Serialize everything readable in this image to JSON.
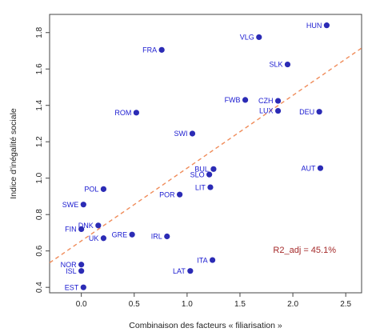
{
  "chart_data": {
    "type": "scatter",
    "xlabel": "Combinaison des facteurs « filiarisation »",
    "ylabel": "Indice d'inégalité sociale",
    "xlim": [
      -0.3,
      2.65
    ],
    "ylim": [
      0.37,
      1.9
    ],
    "xticks": [
      0.0,
      0.5,
      1.0,
      1.5,
      2.0,
      2.5
    ],
    "yticks": [
      0.4,
      0.6,
      0.8,
      1.0,
      1.2,
      1.4,
      1.6,
      1.8
    ],
    "grid": false,
    "point_color": "#2b2bb5",
    "label_color": "#1a1ad0",
    "fit_line_color": "#f08c5a",
    "fit_line": {
      "slope": 0.4,
      "intercept": 0.655,
      "style": "dashed"
    },
    "annotation": "R2_adj = 45.1%",
    "points": [
      {
        "label": "HUN",
        "x": 2.32,
        "y": 1.84
      },
      {
        "label": "VLG",
        "x": 1.68,
        "y": 1.775
      },
      {
        "label": "FRA",
        "x": 0.76,
        "y": 1.705
      },
      {
        "label": "SLK",
        "x": 1.95,
        "y": 1.625
      },
      {
        "label": "FWB",
        "x": 1.55,
        "y": 1.43
      },
      {
        "label": "CZH",
        "x": 1.86,
        "y": 1.425
      },
      {
        "label": "LUX",
        "x": 1.86,
        "y": 1.37
      },
      {
        "label": "DEU",
        "x": 2.25,
        "y": 1.365
      },
      {
        "label": "ROM",
        "x": 0.52,
        "y": 1.36
      },
      {
        "label": "SWI",
        "x": 1.05,
        "y": 1.245
      },
      {
        "label": "AUT",
        "x": 2.26,
        "y": 1.055
      },
      {
        "label": "BUL",
        "x": 1.25,
        "y": 1.05
      },
      {
        "label": "SLO",
        "x": 1.21,
        "y": 1.02
      },
      {
        "label": "LIT",
        "x": 1.22,
        "y": 0.95
      },
      {
        "label": "POL",
        "x": 0.21,
        "y": 0.94
      },
      {
        "label": "POR",
        "x": 0.93,
        "y": 0.91
      },
      {
        "label": "SWE",
        "x": 0.02,
        "y": 0.855
      },
      {
        "label": "DNK",
        "x": 0.16,
        "y": 0.74
      },
      {
        "label": "FIN",
        "x": 0.0,
        "y": 0.72
      },
      {
        "label": "GRE",
        "x": 0.48,
        "y": 0.69
      },
      {
        "label": "UK",
        "x": 0.21,
        "y": 0.67
      },
      {
        "label": "IRL",
        "x": 0.81,
        "y": 0.68
      },
      {
        "label": "ITA",
        "x": 1.24,
        "y": 0.55
      },
      {
        "label": "NOR",
        "x": 0.0,
        "y": 0.525
      },
      {
        "label": "ISL",
        "x": 0.0,
        "y": 0.49
      },
      {
        "label": "LAT",
        "x": 1.03,
        "y": 0.49
      },
      {
        "label": "EST",
        "x": 0.02,
        "y": 0.4
      }
    ]
  }
}
